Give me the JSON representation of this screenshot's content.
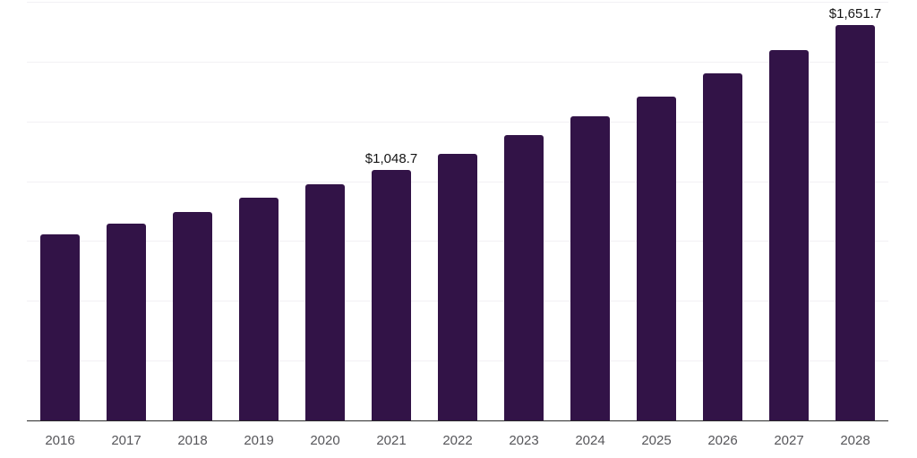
{
  "chart_data": {
    "type": "bar",
    "title": "",
    "xlabel": "",
    "ylabel": "",
    "categories": [
      "2016",
      "2017",
      "2018",
      "2019",
      "2020",
      "2021",
      "2022",
      "2023",
      "2024",
      "2025",
      "2026",
      "2027",
      "2028"
    ],
    "values": [
      778,
      823,
      873,
      931,
      987,
      1048.7,
      1114,
      1193,
      1271,
      1354,
      1451,
      1548,
      1651.7
    ],
    "data_labels": {
      "2021": "$1,048.7",
      "2028": "$1,651.7"
    },
    "ylim": [
      0,
      1750
    ],
    "gridline_interval": 250,
    "grid": true,
    "legend": false,
    "y_axis_tick_labels_visible": false,
    "colors": {
      "bar": "#321347",
      "axis_line": "#2b2b2b",
      "gridline": "#f2f0f4",
      "tick_label": "#56565a",
      "data_label": "#141414",
      "background": "#ffffff"
    }
  }
}
